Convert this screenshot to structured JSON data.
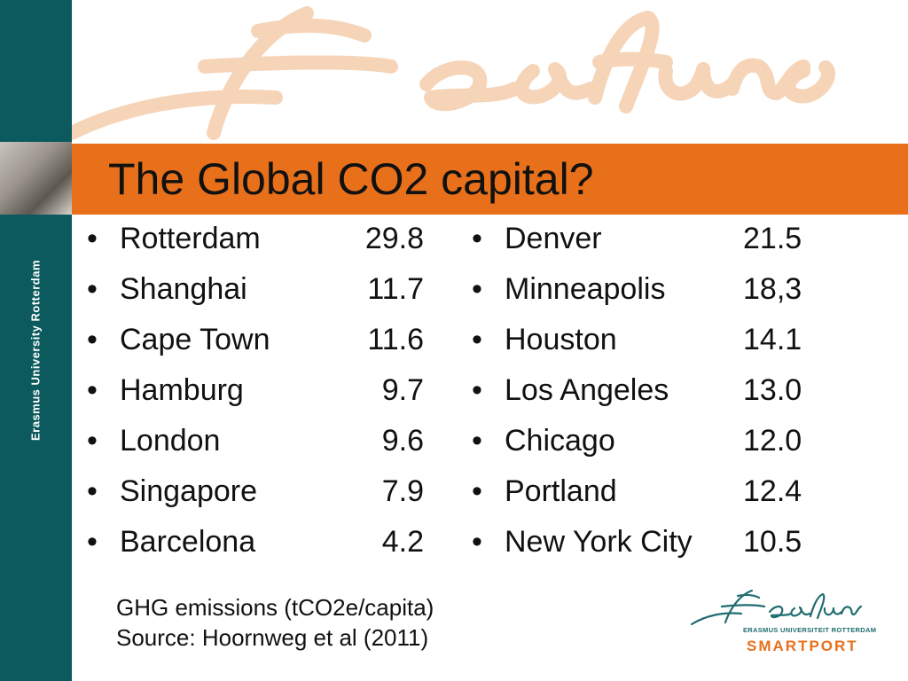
{
  "title": "The Global CO2 capital?",
  "sidebar": {
    "vertical_text": "Erasmus University Rotterdam"
  },
  "left_list": [
    {
      "city": "Rotterdam",
      "value": "29.8"
    },
    {
      "city": "Shanghai",
      "value": "11.7"
    },
    {
      "city": "Cape Town",
      "value": "11.6"
    },
    {
      "city": "Hamburg",
      "value": "9.7"
    },
    {
      "city": "London",
      "value": "9.6"
    },
    {
      "city": "Singapore",
      "value": "7.9"
    },
    {
      "city": "Barcelona",
      "value": "4.2"
    }
  ],
  "right_list": [
    {
      "city": "Denver",
      "value": "21.5"
    },
    {
      "city": "Minneapolis",
      "value": "18,3"
    },
    {
      "city": "Houston",
      "value": "14.1"
    },
    {
      "city": "Los Angeles",
      "value": "13.0"
    },
    {
      "city": "Chicago",
      "value": "12.0"
    },
    {
      "city": "Portland",
      "value": "12.4"
    },
    {
      "city": "New York City",
      "value": "10.5"
    }
  ],
  "bullet": "•",
  "caption": {
    "line1": "GHG emissions (tCO2e/capita)",
    "line2": "Source: Hoornweg et al (2011)"
  },
  "logo": {
    "line1": "ERASMUS UNIVERSITEIT ROTTERDAM",
    "line2": "SMARTPORT"
  },
  "colors": {
    "sidebar": "#0c5a5e",
    "title_bar": "#e8701b",
    "signature": "#f6d4b8"
  }
}
